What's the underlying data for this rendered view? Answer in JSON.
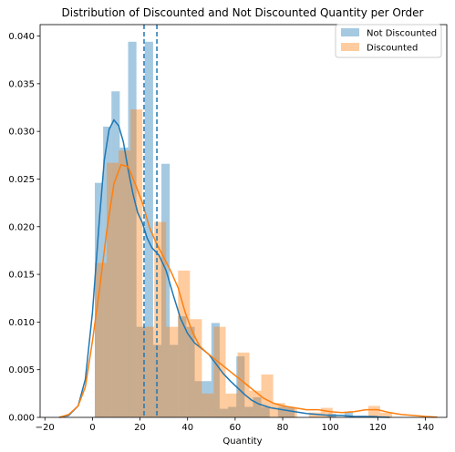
{
  "chart_data": {
    "type": "bar",
    "title": "Distribution of Discounted and Not Discounted Quantity per Order",
    "xlabel": "Quantity",
    "ylabel": "",
    "xlim": [
      -22,
      149
    ],
    "ylim": [
      0,
      0.0412
    ],
    "xticks": [
      -20,
      0,
      20,
      40,
      60,
      80,
      100,
      120,
      140
    ],
    "xtick_labels": [
      "−20",
      "0",
      "20",
      "40",
      "60",
      "80",
      "100",
      "120",
      "140"
    ],
    "yticks": [
      0,
      0.005,
      0.01,
      0.015,
      0.02,
      0.025,
      0.03,
      0.035,
      0.04
    ],
    "ytick_labels": [
      "0.000",
      "0.005",
      "0.010",
      "0.015",
      "0.020",
      "0.025",
      "0.030",
      "0.035",
      "0.040"
    ],
    "legend_position": "top-right",
    "series": [
      {
        "name": "Not Discounted",
        "color": "#1f77b4",
        "bar_opacity": 0.4,
        "bin_width": 3.5,
        "bins": [
          [
            1,
            0.0246
          ],
          [
            4.5,
            0.0305
          ],
          [
            8,
            0.0342
          ],
          [
            11.5,
            0.0283
          ],
          [
            15,
            0.0394
          ],
          [
            18.5,
            0.0095
          ],
          [
            22,
            0.0394
          ],
          [
            25.5,
            0.0076
          ],
          [
            29,
            0.0266
          ],
          [
            32.5,
            0.0076
          ],
          [
            36,
            0.0106
          ],
          [
            39.5,
            0.0095
          ],
          [
            43,
            0.0038
          ],
          [
            46.5,
            0.0038
          ],
          [
            50,
            0.0099
          ],
          [
            53.5,
            0.0009
          ],
          [
            57,
            0.0011
          ],
          [
            60.5,
            0.0064
          ],
          [
            64,
            0.0011
          ],
          [
            67.5,
            0.0021
          ],
          [
            71,
            0.0011
          ],
          [
            78,
            0.0011
          ],
          [
            81.5,
            0.0011
          ],
          [
            99,
            0.0004
          ],
          [
            106,
            0.0006
          ],
          [
            116.5,
            0.0002
          ]
        ],
        "kde": [
          [
            -14,
            0
          ],
          [
            -10,
            0.0002
          ],
          [
            -6,
            0.0012
          ],
          [
            -3,
            0.004
          ],
          [
            0,
            0.011
          ],
          [
            3,
            0.021
          ],
          [
            5,
            0.027
          ],
          [
            7,
            0.0302
          ],
          [
            9,
            0.0312
          ],
          [
            11,
            0.0306
          ],
          [
            13,
            0.0289
          ],
          [
            15,
            0.026
          ],
          [
            17,
            0.0235
          ],
          [
            19,
            0.0215
          ],
          [
            21,
            0.0204
          ],
          [
            23,
            0.0188
          ],
          [
            25,
            0.0178
          ],
          [
            28,
            0.017
          ],
          [
            31,
            0.0154
          ],
          [
            34,
            0.0128
          ],
          [
            37,
            0.0104
          ],
          [
            40,
            0.0088
          ],
          [
            43,
            0.0078
          ],
          [
            46,
            0.0072
          ],
          [
            49,
            0.0066
          ],
          [
            52,
            0.0056
          ],
          [
            55,
            0.0046
          ],
          [
            58,
            0.0038
          ],
          [
            61,
            0.0031
          ],
          [
            64,
            0.0024
          ],
          [
            67,
            0.0018
          ],
          [
            70,
            0.0014
          ],
          [
            75,
            0.001
          ],
          [
            80,
            0.0008
          ],
          [
            85,
            0.0006
          ],
          [
            90,
            0.0004
          ],
          [
            95,
            0.0003
          ],
          [
            100,
            0.0002
          ],
          [
            105,
            0.0002
          ],
          [
            110,
            0.0001
          ],
          [
            115,
            0.0001
          ],
          [
            120,
            5e-05
          ],
          [
            125,
            0
          ]
        ],
        "mean": 21.7
      },
      {
        "name": "Discounted",
        "color": "#ff7f0e",
        "bar_opacity": 0.4,
        "bin_width": 5,
        "bins": [
          [
            1,
            0.0162
          ],
          [
            6,
            0.0267
          ],
          [
            11,
            0.028
          ],
          [
            16,
            0.0323
          ],
          [
            21,
            0.0095
          ],
          [
            26,
            0.0205
          ],
          [
            31,
            0.0095
          ],
          [
            36,
            0.0154
          ],
          [
            41,
            0.0103
          ],
          [
            46,
            0.0025
          ],
          [
            51,
            0.0095
          ],
          [
            56,
            0.0025
          ],
          [
            61,
            0.0068
          ],
          [
            66,
            0.0028
          ],
          [
            71,
            0.0045
          ],
          [
            76,
            0.0015
          ],
          [
            81,
            0.001
          ],
          [
            91,
            0.0005
          ],
          [
            96,
            0.001
          ],
          [
            116,
            0.0012
          ],
          [
            121,
            0.0005
          ]
        ],
        "kde": [
          [
            -14,
            0
          ],
          [
            -10,
            0.0003
          ],
          [
            -6,
            0.0012
          ],
          [
            -3,
            0.0032
          ],
          [
            0,
            0.008
          ],
          [
            3,
            0.0135
          ],
          [
            6,
            0.0195
          ],
          [
            9,
            0.0245
          ],
          [
            12,
            0.0265
          ],
          [
            15,
            0.0263
          ],
          [
            18,
            0.0245
          ],
          [
            21,
            0.0225
          ],
          [
            24,
            0.0199
          ],
          [
            27,
            0.0182
          ],
          [
            30,
            0.0168
          ],
          [
            33,
            0.0153
          ],
          [
            36,
            0.0136
          ],
          [
            39,
            0.011
          ],
          [
            42,
            0.009
          ],
          [
            45,
            0.0075
          ],
          [
            48,
            0.0068
          ],
          [
            51,
            0.0062
          ],
          [
            54,
            0.0056
          ],
          [
            57,
            0.005
          ],
          [
            60,
            0.0044
          ],
          [
            63,
            0.0038
          ],
          [
            66,
            0.0032
          ],
          [
            69,
            0.0026
          ],
          [
            72,
            0.002
          ],
          [
            76,
            0.0015
          ],
          [
            80,
            0.0012
          ],
          [
            85,
            0.001
          ],
          [
            90,
            0.0008
          ],
          [
            95,
            0.0008
          ],
          [
            100,
            0.0006
          ],
          [
            105,
            0.0005
          ],
          [
            110,
            0.0006
          ],
          [
            115,
            0.0008
          ],
          [
            120,
            0.0008
          ],
          [
            125,
            0.0005
          ],
          [
            130,
            0.0003
          ],
          [
            135,
            0.0002
          ],
          [
            140,
            0.0001
          ],
          [
            145,
            3e-05
          ]
        ],
        "mean": 27.1
      }
    ]
  }
}
